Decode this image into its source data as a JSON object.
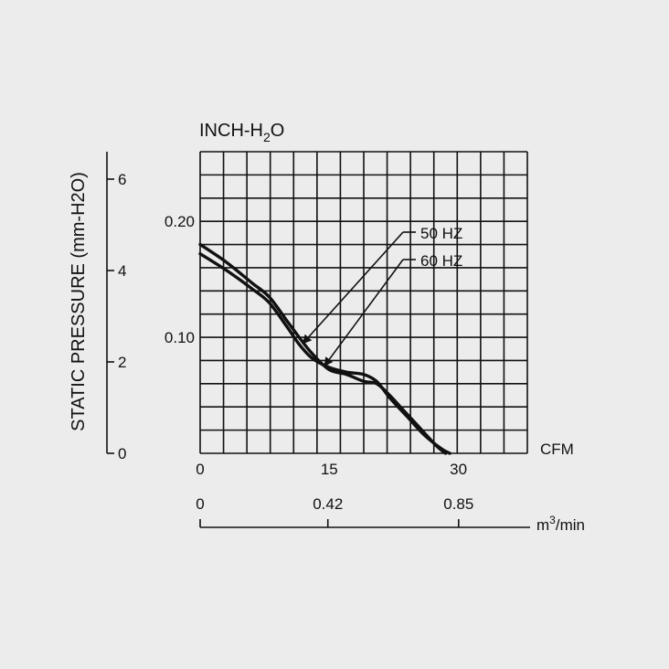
{
  "chart_data": {
    "type": "line",
    "title": "",
    "primary_y": {
      "label_main": "INCH-H",
      "label_sub": "2",
      "label_tail": "O",
      "range": [
        0,
        0.26
      ],
      "ticks": [
        {
          "v": 0.1,
          "label": "0.10"
        },
        {
          "v": 0.2,
          "label": "0.20"
        }
      ]
    },
    "secondary_y": {
      "label": "STATIC PRESSURE (mm-H2O)",
      "range": [
        0,
        6.6
      ],
      "ticks": [
        {
          "v": 0,
          "label": "0"
        },
        {
          "v": 2,
          "label": "2"
        },
        {
          "v": 4,
          "label": "4"
        },
        {
          "v": 6,
          "label": "6"
        }
      ]
    },
    "primary_x": {
      "label": "CFM",
      "range": [
        0,
        38
      ],
      "ticks": [
        {
          "v": 0,
          "label": "0"
        },
        {
          "v": 15,
          "label": "15"
        },
        {
          "v": 30,
          "label": "30"
        }
      ]
    },
    "secondary_x": {
      "label_main": "m",
      "label_sup": "3",
      "label_tail": "/min",
      "ticks": [
        {
          "v": 0,
          "label": "0"
        },
        {
          "v": 0.42,
          "label": "0.42"
        },
        {
          "v": 0.85,
          "label": "0.85"
        }
      ]
    },
    "grid": true,
    "series": [
      {
        "name": "50 HZ",
        "x": [
          0,
          3,
          6,
          8,
          10,
          11.5,
          13,
          15,
          17,
          19,
          20.5,
          22,
          24,
          26,
          27.5,
          28.5
        ],
        "y": [
          0.18,
          0.165,
          0.147,
          0.135,
          0.115,
          0.1,
          0.086,
          0.072,
          0.068,
          0.062,
          0.06,
          0.05,
          0.034,
          0.018,
          0.006,
          0
        ]
      },
      {
        "name": "60 HZ",
        "x": [
          0,
          3,
          6,
          8,
          10,
          11.5,
          13,
          15,
          17,
          19,
          20.5,
          22,
          24,
          26,
          28,
          29
        ],
        "y": [
          0.172,
          0.158,
          0.142,
          0.13,
          0.11,
          0.094,
          0.082,
          0.074,
          0.07,
          0.068,
          0.062,
          0.048,
          0.032,
          0.016,
          0.004,
          0
        ]
      }
    ]
  }
}
